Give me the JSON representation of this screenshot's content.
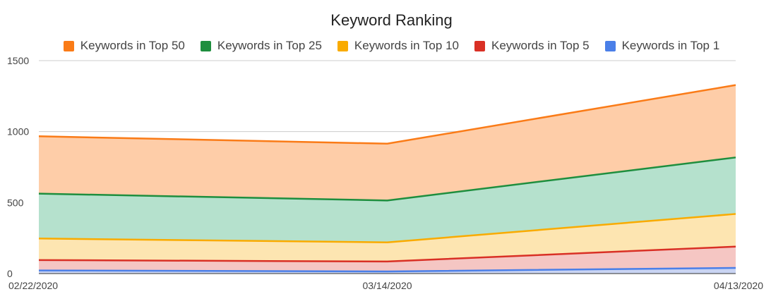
{
  "chart_data": {
    "type": "area",
    "title": "Keyword Ranking",
    "x": [
      "02/22/2020",
      "03/14/2020",
      "04/13/2020"
    ],
    "ylim": [
      0,
      1500
    ],
    "yticks": [
      "0",
      "500",
      "1000",
      "1500"
    ],
    "grid": true,
    "legend_position": "top",
    "series": [
      {
        "name": "Keywords in Top 50",
        "color": "#fa7b17",
        "fill": "#fecda8",
        "values": [
          967,
          915,
          1328
        ]
      },
      {
        "name": "Keywords in Top 25",
        "color": "#1e8e3e",
        "fill": "#b5e1cd",
        "values": [
          563,
          515,
          818
        ]
      },
      {
        "name": "Keywords in Top 10",
        "color": "#f9ab00",
        "fill": "#fde5b1",
        "values": [
          247,
          220,
          420
        ]
      },
      {
        "name": "Keywords in Top 5",
        "color": "#d93025",
        "fill": "#f5c6c3",
        "values": [
          95,
          85,
          190
        ]
      },
      {
        "name": "Keywords in Top 1",
        "color": "#4a7fe8",
        "fill": "#c9d4f3",
        "values": [
          22,
          15,
          40
        ]
      }
    ]
  }
}
